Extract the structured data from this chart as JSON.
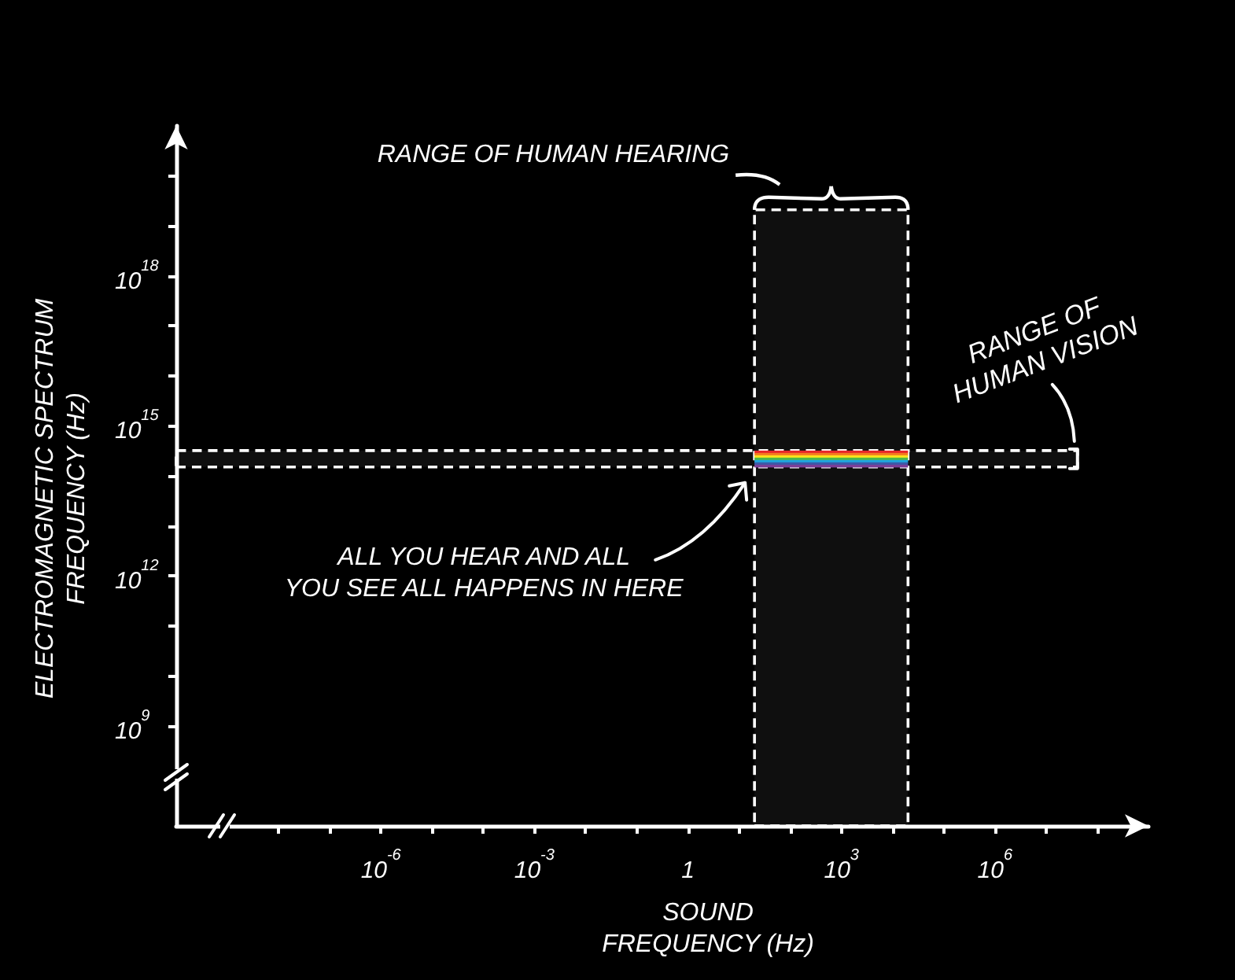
{
  "chart_data": {
    "type": "scatter",
    "xlabel": "SOUND FREQUENCY (Hz)",
    "ylabel": "ELECTROMAGNETIC SPECTRUM FREQUENCY (Hz)",
    "log": "xy",
    "xlim": [
      1e-10,
      1000000000.0
    ],
    "xticks": [
      {
        "value": 1e-08,
        "label": null
      },
      {
        "value": 1e-07,
        "label": null
      },
      {
        "value": 1e-06,
        "label": "10$^{-6}$"
      },
      {
        "value": 1e-05,
        "label": null
      },
      {
        "value": 0.0001,
        "label": null
      },
      {
        "value": 0.001,
        "label": "10$^{-3}$"
      },
      {
        "value": 0.01,
        "label": null
      },
      {
        "value": 0.1,
        "label": null
      },
      1,
      {
        "value": 10,
        "label": null
      },
      {
        "value": 100,
        "label": null
      },
      {
        "value": 1000,
        "label": "10$^{3}$"
      },
      {
        "value": 10000.0,
        "label": null
      },
      {
        "value": 100000.0,
        "label": null
      },
      {
        "value": 1000000.0,
        "label": "10$^{6}$"
      },
      {
        "value": 10000000.0,
        "label": null
      },
      {
        "value": 100000000.0,
        "label": null
      }
    ],
    "ylim": [
      10000000.0,
      1e+21
    ],
    "yticks": [
      {
        "value": 1000000000.0,
        "label": "10$^{9}$"
      },
      {
        "value": 10000000000.0,
        "label": null
      },
      {
        "value": 100000000000.0,
        "label": null
      },
      {
        "value": 1000000000000.0,
        "label": "10$^{12}$"
      },
      {
        "value": 10000000000000.0,
        "label": null
      },
      {
        "value": 100000000000000.0,
        "label": null
      },
      {
        "value": 1000000000000000.0,
        "label": "10$^{15}$"
      },
      {
        "value": 1e+16,
        "label": null
      },
      {
        "value": 1e+17,
        "label": null
      },
      {
        "value": 1e+18,
        "label": "10$^{18}$"
      },
      {
        "value": 1e+19,
        "label": null
      },
      {
        "value": 1e+20,
        "label": null
      }
    ],
    "bands": [
      {
        "axis": "x",
        "from": 20,
        "to": 20000,
        "label": "RANGE OF HUMAN HEARING",
        "color": "#ffffff"
      },
      {
        "axis": "y",
        "from": 150000000000000.0,
        "to": 320000000000000.0,
        "label": "RANGE OF HUMAN VISION",
        "color": "#ffffff"
      }
    ],
    "annotations": [
      "ALL YOU HEAR AND ALL YOU SEE ALL HAPPENS IN HERE"
    ]
  }
}
